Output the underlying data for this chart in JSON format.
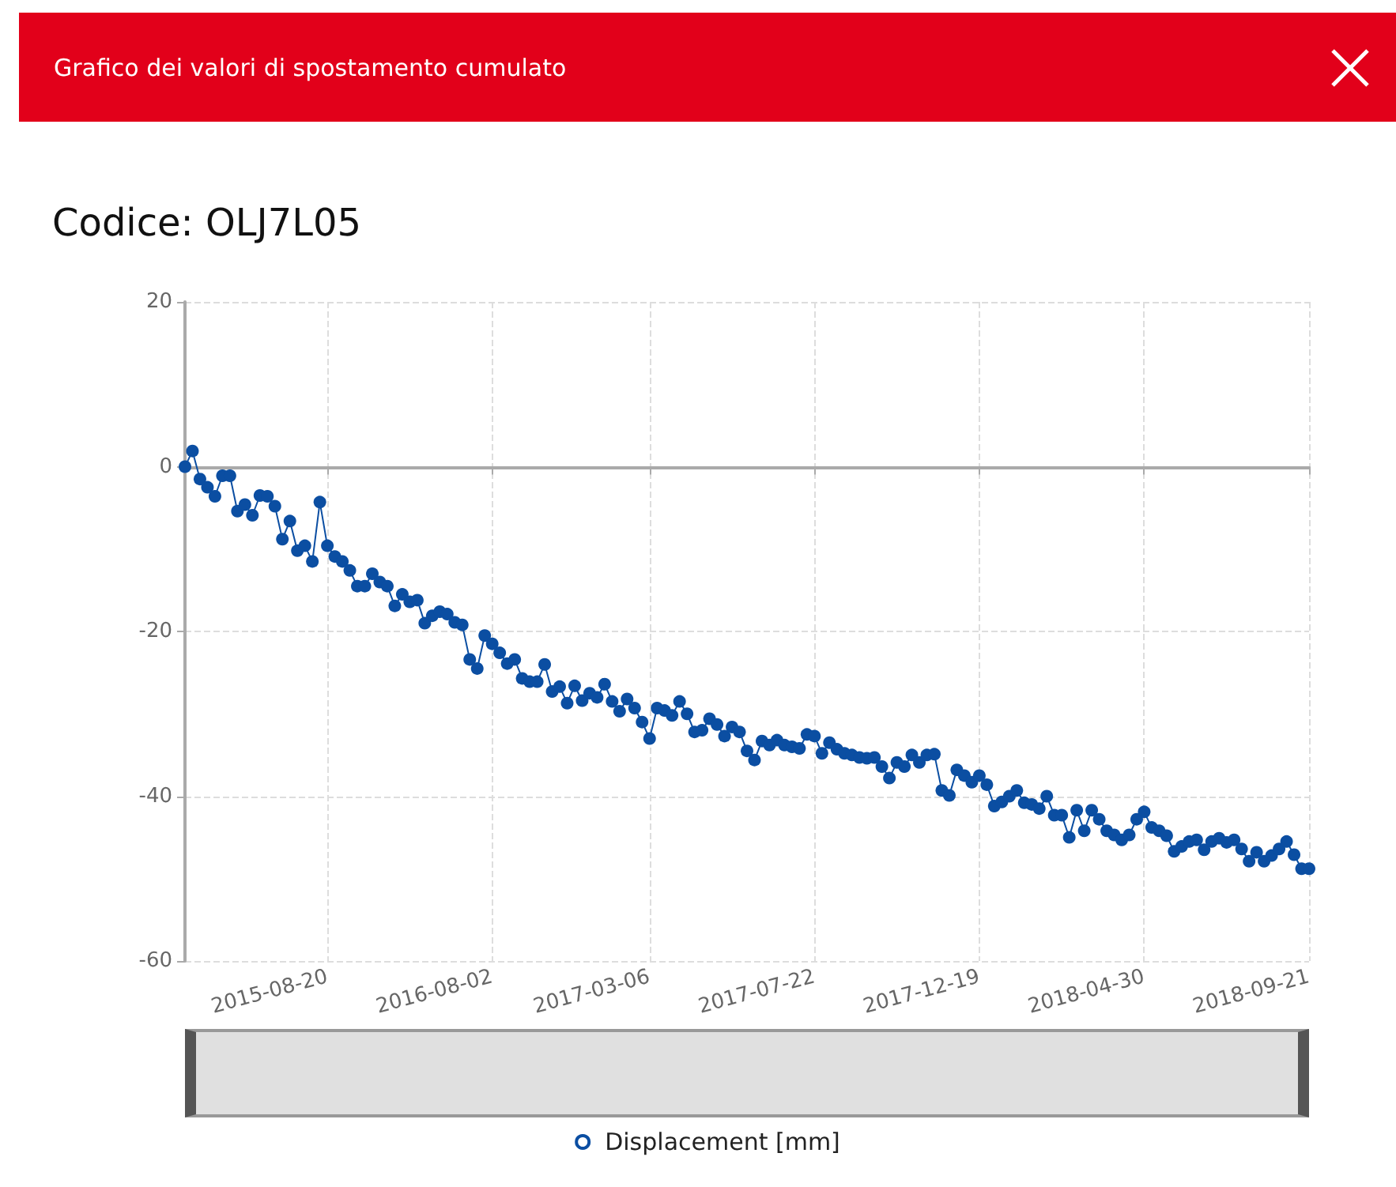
{
  "chart_data": {
    "type": "line",
    "title": "Grafico dei valori di spostamento cumulato",
    "subtitle": "Codice: OLJ7L05",
    "categories": [
      null,
      null,
      null,
      null,
      null,
      null,
      null,
      null,
      null,
      null,
      null,
      null,
      null,
      null,
      null,
      null,
      null,
      null,
      null,
      "2015-08-20",
      null,
      null,
      null,
      null,
      null,
      null,
      null,
      null,
      null,
      null,
      null,
      null,
      null,
      null,
      null,
      null,
      null,
      null,
      null,
      null,
      null,
      "2016-08-02",
      null,
      null,
      null,
      null,
      null,
      null,
      null,
      null,
      null,
      null,
      null,
      null,
      null,
      null,
      null,
      null,
      null,
      null,
      null,
      null,
      "2017-03-06",
      null,
      null,
      null,
      null,
      null,
      null,
      null,
      null,
      null,
      null,
      null,
      null,
      null,
      null,
      null,
      null,
      null,
      null,
      null,
      null,
      null,
      "2017-07-22",
      null,
      null,
      null,
      null,
      null,
      null,
      null,
      null,
      null,
      null,
      null,
      null,
      null,
      null,
      null,
      null,
      null,
      null,
      null,
      null,
      null,
      "2017-12-19",
      null,
      null,
      null,
      null,
      null,
      null,
      null,
      null,
      null,
      null,
      null,
      null,
      null,
      null,
      null,
      null,
      null,
      null,
      null,
      null,
      null,
      "2018-04-30",
      null,
      null,
      null,
      null,
      null,
      null,
      null,
      null,
      null,
      null,
      null,
      null,
      null,
      null,
      null,
      null,
      null,
      null,
      null,
      null,
      null,
      "2018-09-21"
    ],
    "series": [
      {
        "name": "Displacement [mm]",
        "color": "#0b4ea2",
        "values": [
          0,
          1.9,
          -1.5,
          -2.5,
          -3.6,
          -1.1,
          -1.1,
          -5.4,
          -4.6,
          -5.9,
          -3.5,
          -3.6,
          -4.8,
          -8.8,
          -6.6,
          -10.2,
          -9.6,
          -11.5,
          -4.3,
          -9.6,
          -10.9,
          -11.5,
          -12.6,
          -14.5,
          -14.5,
          -13,
          -14,
          -14.5,
          -16.9,
          -15.5,
          -16.4,
          -16.2,
          -19,
          -18.1,
          -17.6,
          -17.9,
          -18.9,
          -19.2,
          -23.4,
          -24.5,
          -20.5,
          -21.5,
          -22.6,
          -23.9,
          -23.4,
          -25.7,
          -26.1,
          -26.1,
          -24,
          -27.3,
          -26.7,
          -28.7,
          -26.6,
          -28.4,
          -27.5,
          -28,
          -26.4,
          -28.5,
          -29.7,
          -28.2,
          -29.3,
          -31,
          -33,
          -29.3,
          -29.6,
          -30.2,
          -28.5,
          -30,
          -32.2,
          -32,
          -30.6,
          -31.3,
          -32.7,
          -31.6,
          -32.2,
          -34.5,
          -35.6,
          -33.3,
          -33.8,
          -33.2,
          -33.8,
          -34,
          -34.2,
          -32.5,
          -32.7,
          -34.8,
          -33.5,
          -34.3,
          -34.8,
          -35,
          -35.3,
          -35.4,
          -35.3,
          -36.4,
          -37.8,
          -35.9,
          -36.4,
          -35,
          -35.9,
          -35,
          -34.9,
          -39.3,
          -39.9,
          -36.8,
          -37.5,
          -38.3,
          -37.5,
          -38.6,
          -41.2,
          -40.7,
          -40,
          -39.3,
          -40.8,
          -41,
          -41.5,
          -40,
          -42.3,
          -42.3,
          -45,
          -41.7,
          -44.2,
          -41.7,
          -42.8,
          -44.2,
          -44.7,
          -45.3,
          -44.7,
          -42.8,
          -41.9,
          -43.8,
          -44.2,
          -44.8,
          -46.7,
          -46.1,
          -45.5,
          -45.3,
          -46.5,
          -45.5,
          -45.1,
          -45.6,
          -45.3,
          -46.4,
          -47.9,
          -46.8,
          -47.9,
          -47.2,
          -46.4,
          -45.5,
          -47.1,
          -48.8,
          -48.8
        ]
      }
    ],
    "ylim": [
      -60,
      20
    ],
    "yticks": [
      -60,
      -40,
      -20,
      0,
      20
    ],
    "grid": true,
    "legend": "bottom",
    "marker": "circle"
  }
}
